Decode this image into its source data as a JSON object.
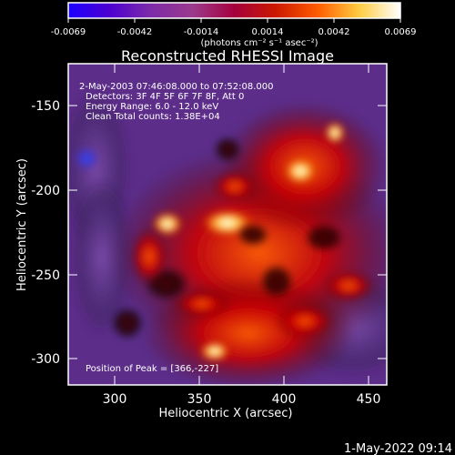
{
  "colorbar": {
    "ticks": [
      "-0.0069",
      "-0.0042",
      "-0.0014",
      "0.0014",
      "0.0042",
      "0.0069"
    ],
    "unit_label": "(photons cm⁻² s⁻¹ asec⁻²)",
    "stops": [
      "#1c00ff",
      "#4d00d0",
      "#7d2ca8",
      "#9b3a8d",
      "#a5003d",
      "#cc1800",
      "#ff5b00",
      "#ffcc40",
      "#ffffff"
    ]
  },
  "image": {
    "title": "Reconstructed RHESSI Image",
    "info_lines": [
      "2-May-2003 07:46:08.000 to 07:52:08.000",
      "Detectors: 3F 4F 5F 6F 7F 8F, Att 0",
      "Energy Range: 6.0 - 12.0 keV",
      "Clean      Total counts: 1.38E+04"
    ],
    "peak_text": "Position of Peak = [366,-227]",
    "xlabel": "Heliocentric X (arcsec)",
    "ylabel": "Heliocentric Y (arcsec)",
    "x_ticks": [
      "300",
      "350",
      "400",
      "450"
    ],
    "y_ticks": [
      "-150",
      "-200",
      "-250",
      "-300"
    ],
    "timestamp": "1-May-2022 09:14"
  }
}
